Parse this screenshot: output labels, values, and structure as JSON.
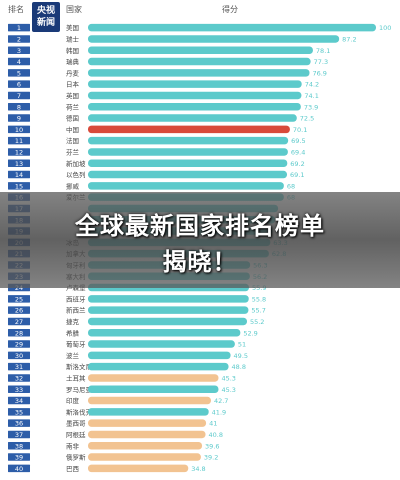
{
  "header": {
    "rank_label": "排名",
    "country_label": "国家",
    "score_label": "得分"
  },
  "logo": {
    "line1": "央视",
    "line2": "新闻"
  },
  "headline": {
    "line1": "全球最新国家排名榜单",
    "line2": "揭晓！"
  },
  "colors": {
    "teal": "#5ccacb",
    "red": "#d84a3a",
    "peach": "#f2c391",
    "rank_box": "#2d5da8"
  },
  "chart_data": {
    "type": "bar",
    "orientation": "horizontal",
    "xlim": [
      0,
      100
    ],
    "title": "",
    "xlabel": "",
    "ylabel": "",
    "rows": [
      {
        "rank": "1",
        "country": "美国",
        "value": 100,
        "label": "100",
        "color": "teal"
      },
      {
        "rank": "2",
        "country": "瑞士",
        "value": 87.2,
        "label": "87.2",
        "color": "teal"
      },
      {
        "rank": "3",
        "country": "韩国",
        "value": 78.1,
        "label": "78.1",
        "color": "teal"
      },
      {
        "rank": "4",
        "country": "瑞典",
        "value": 77.3,
        "label": "77.3",
        "color": "teal"
      },
      {
        "rank": "5",
        "country": "丹麦",
        "value": 76.9,
        "label": "76.9",
        "color": "teal"
      },
      {
        "rank": "6",
        "country": "日本",
        "value": 74.2,
        "label": "74.2",
        "color": "teal"
      },
      {
        "rank": "7",
        "country": "英国",
        "value": 74.1,
        "label": "74.1",
        "color": "teal"
      },
      {
        "rank": "8",
        "country": "荷兰",
        "value": 73.9,
        "label": "73.9",
        "color": "teal"
      },
      {
        "rank": "9",
        "country": "德国",
        "value": 72.5,
        "label": "72.5",
        "color": "teal"
      },
      {
        "rank": "10",
        "country": "中国",
        "value": 70.1,
        "label": "70.1",
        "color": "red"
      },
      {
        "rank": "11",
        "country": "法国",
        "value": 69.5,
        "label": "69.5",
        "color": "teal"
      },
      {
        "rank": "12",
        "country": "芬兰",
        "value": 69.4,
        "label": "69.4",
        "color": "teal"
      },
      {
        "rank": "13",
        "country": "新加坡",
        "value": 69.2,
        "label": "69.2",
        "color": "teal"
      },
      {
        "rank": "14",
        "country": "以色列",
        "value": 69.1,
        "label": "69.1",
        "color": "teal"
      },
      {
        "rank": "15",
        "country": "挪威",
        "value": 68,
        "label": "68",
        "color": "teal"
      },
      {
        "rank": "16",
        "country": "爱尔兰",
        "value": 68,
        "label": "68",
        "color": "teal"
      },
      {
        "rank": "17",
        "country": "",
        "value": 66,
        "label": "",
        "color": "teal"
      },
      {
        "rank": "18",
        "country": "",
        "value": 65,
        "label": "",
        "color": "teal"
      },
      {
        "rank": "19",
        "country": "",
        "value": 64,
        "label": "",
        "color": "teal"
      },
      {
        "rank": "20",
        "country": "冰岛",
        "value": 63.3,
        "label": "63.3",
        "color": "teal"
      },
      {
        "rank": "21",
        "country": "加拿大",
        "value": 62.8,
        "label": "62.8",
        "color": "teal"
      },
      {
        "rank": "22",
        "country": "匈牙利",
        "value": 56.3,
        "label": "56.3",
        "color": "teal"
      },
      {
        "rank": "23",
        "country": "塞大利",
        "value": 56.2,
        "label": "56.2",
        "color": "teal"
      },
      {
        "rank": "24",
        "country": "卢森堡",
        "value": 55.9,
        "label": "55.9",
        "color": "teal"
      },
      {
        "rank": "25",
        "country": "西班牙",
        "value": 55.8,
        "label": "55.8",
        "color": "teal"
      },
      {
        "rank": "26",
        "country": "新西兰",
        "value": 55.7,
        "label": "55.7",
        "color": "teal"
      },
      {
        "rank": "27",
        "country": "捷克",
        "value": 55.2,
        "label": "55.2",
        "color": "teal"
      },
      {
        "rank": "28",
        "country": "希腊",
        "value": 52.9,
        "label": "52.9",
        "color": "teal"
      },
      {
        "rank": "29",
        "country": "葡萄牙",
        "value": 51,
        "label": "51",
        "color": "teal"
      },
      {
        "rank": "30",
        "country": "波兰",
        "value": 49.5,
        "label": "49.5",
        "color": "teal"
      },
      {
        "rank": "31",
        "country": "斯洛文尼亚",
        "value": 48.8,
        "label": "48.8",
        "color": "teal"
      },
      {
        "rank": "32",
        "country": "土耳其",
        "value": 45.3,
        "label": "45.3",
        "color": "peach"
      },
      {
        "rank": "33",
        "country": "罗马尼亚",
        "value": 45.3,
        "label": "45.3",
        "color": "teal"
      },
      {
        "rank": "34",
        "country": "印度",
        "value": 42.7,
        "label": "42.7",
        "color": "peach"
      },
      {
        "rank": "35",
        "country": "斯洛伐克",
        "value": 41.9,
        "label": "41.9",
        "color": "teal"
      },
      {
        "rank": "36",
        "country": "墨西哥",
        "value": 41,
        "label": "41",
        "color": "peach"
      },
      {
        "rank": "37",
        "country": "阿根廷",
        "value": 40.8,
        "label": "40.8",
        "color": "peach"
      },
      {
        "rank": "38",
        "country": "南非",
        "value": 39.6,
        "label": "39.6",
        "color": "peach"
      },
      {
        "rank": "39",
        "country": "俄罗斯",
        "value": 39.2,
        "label": "39.2",
        "color": "peach"
      },
      {
        "rank": "40",
        "country": "巴西",
        "value": 34.8,
        "label": "34.8",
        "color": "peach"
      }
    ]
  }
}
